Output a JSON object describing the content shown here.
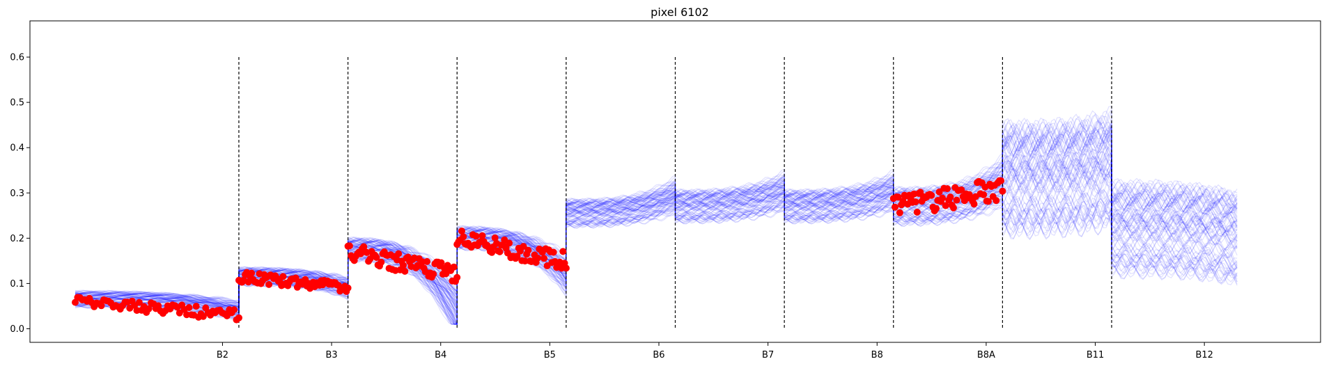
{
  "chart_data": {
    "type": "line",
    "title": "pixel 6102",
    "xlabel": "",
    "ylabel": "",
    "ylim": [
      -0.03,
      0.68
    ],
    "xlim": [
      0,
      11
    ],
    "yticks": [
      0.0,
      0.1,
      0.2,
      0.3,
      0.4,
      0.5,
      0.6
    ],
    "ytick_labels": [
      "0.0",
      "0.1",
      "0.2",
      "0.3",
      "0.4",
      "0.5",
      "0.6"
    ],
    "xtick_labels": [
      "B2",
      "B3",
      "B4",
      "B5",
      "B6",
      "B7",
      "B8",
      "B8A",
      "B11",
      "B12"
    ],
    "xtick_positions": [
      1.35,
      2.35,
      3.35,
      4.35,
      5.35,
      6.35,
      7.35,
      8.35,
      9.35,
      10.35
    ],
    "band_boundaries": [
      1.5,
      2.5,
      3.5,
      4.5,
      5.5,
      6.5,
      7.5,
      8.5,
      9.5
    ],
    "boundary_ymax": 0.6,
    "boundary_color": "#000000",
    "ensemble_color": "#0000ff",
    "observed_color": "#ff0000",
    "ensemble_size": 90,
    "ensemble_band_levels": [
      {
        "band": "seg1",
        "base": 0.065,
        "spread": 0.018,
        "end": 0.04
      },
      {
        "band": "B2",
        "base": 0.115,
        "spread": 0.02,
        "end": 0.09
      },
      {
        "band": "B3",
        "base": 0.175,
        "spread": 0.025,
        "end": 0.04
      },
      {
        "band": "B4",
        "base": 0.2,
        "spread": 0.025,
        "end": 0.12
      },
      {
        "band": "B5",
        "base": 0.255,
        "spread": 0.03,
        "end": 0.29
      },
      {
        "band": "B6",
        "base": 0.27,
        "spread": 0.035,
        "end": 0.3
      },
      {
        "band": "B7",
        "base": 0.27,
        "spread": 0.035,
        "end": 0.3
      },
      {
        "band": "B8",
        "base": 0.27,
        "spread": 0.04,
        "end": 0.32
      },
      {
        "band": "B8A",
        "base": 0.33,
        "spread": 0.12,
        "end": 0.35
      },
      {
        "band": "B11",
        "base": 0.22,
        "spread": 0.1,
        "end": 0.2
      }
    ],
    "observed_segments": [
      {
        "x0": 0.0,
        "x1": 1.5,
        "y0": 0.06,
        "y1": 0.03,
        "noise": 0.012
      },
      {
        "x0": 1.5,
        "x1": 2.5,
        "y0": 0.115,
        "y1": 0.09,
        "noise": 0.012
      },
      {
        "x0": 2.5,
        "x1": 3.5,
        "y0": 0.17,
        "y1": 0.12,
        "noise": 0.02
      },
      {
        "x0": 3.5,
        "x1": 4.5,
        "y0": 0.2,
        "y1": 0.15,
        "noise": 0.02
      },
      {
        "x0": 7.5,
        "x1": 8.5,
        "y0": 0.27,
        "y1": 0.31,
        "noise": 0.025
      }
    ]
  }
}
